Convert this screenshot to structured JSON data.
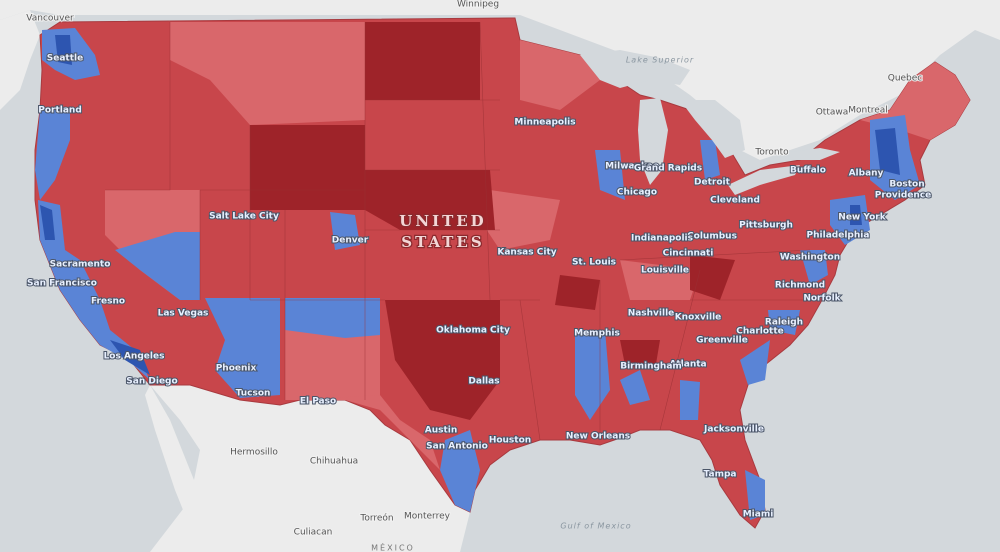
{
  "map": {
    "country_labels": [
      "UNITED",
      "STATES",
      "MÉXICO"
    ],
    "water_labels": [
      "Lake Superior",
      "Gulf of Mexico"
    ],
    "us_cities": [
      "Seattle",
      "Portland",
      "Minneapolis",
      "Milwaukee",
      "Grand Rapids",
      "Detroit",
      "Chicago",
      "Buffalo",
      "Albany",
      "Boston",
      "Providence",
      "New York",
      "Philadelphia",
      "Pittsburgh",
      "Cleveland",
      "Columbus",
      "Indianapolis",
      "Cincinnati",
      "Louisville",
      "St. Louis",
      "Kansas City",
      "Salt Lake City",
      "Denver",
      "Sacramento",
      "San Francisco",
      "Fresno",
      "Las Vegas",
      "Los Angeles",
      "San Diego",
      "Phoenix",
      "Tucson",
      "El Paso",
      "Oklahoma City",
      "Dallas",
      "Memphis",
      "Nashville",
      "Knoxville",
      "Charlotte",
      "Greenville",
      "Raleigh",
      "Richmond",
      "Washington",
      "Norfolk",
      "Atlanta",
      "Birmingham",
      "Austin",
      "San Antonio",
      "Houston",
      "New Orleans",
      "Jacksonville",
      "Tampa",
      "Miami"
    ],
    "foreign_cities": [
      "Winnipeg",
      "Vancouver",
      "Quebec",
      "Ottawa",
      "Montreal",
      "Toronto",
      "Hermosillo",
      "Chihuahua",
      "Torreón",
      "Monterrey",
      "Culiacan"
    ]
  }
}
